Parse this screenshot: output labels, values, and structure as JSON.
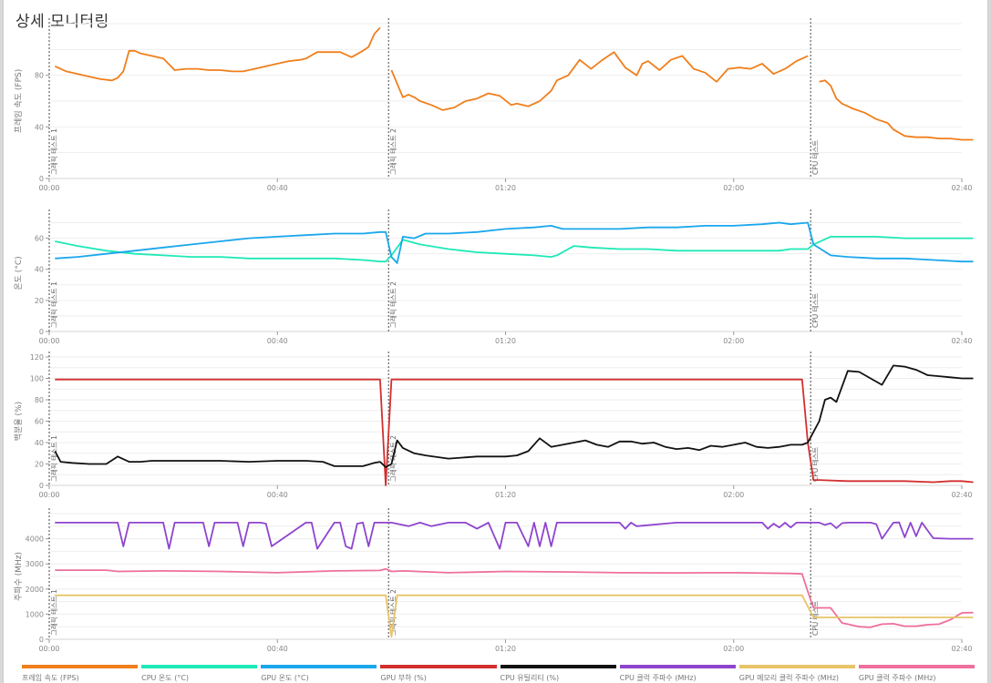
{
  "page": {
    "title": "상세 모니터링"
  },
  "x_axis": {
    "ticks": [
      "00:00",
      "00:40",
      "01:20",
      "02:00",
      "02:40"
    ],
    "tick_minutes": [
      0,
      40,
      80,
      120,
      160
    ],
    "range_minutes": [
      0,
      160
    ]
  },
  "markers": [
    {
      "label": "그래픽 테스트 1",
      "x_min": 0
    },
    {
      "label": "그래픽 테스트 2",
      "x_min": 59.5
    },
    {
      "label": "CPU 테스트",
      "x_min": 133.5
    }
  ],
  "legend": [
    {
      "label": "프레임 속도 (FPS)",
      "color": "#f07f1c"
    },
    {
      "label": "CPU 온도 (°C)",
      "color": "#1de9b6"
    },
    {
      "label": "GPU 온도 (°C)",
      "color": "#1aa7ec"
    },
    {
      "label": "GPU 부하 (%)",
      "color": "#d32f2f"
    },
    {
      "label": "CPU 유틸리티 (%)",
      "color": "#111111"
    },
    {
      "label": "CPU 클럭 주파수 (MHz)",
      "color": "#8e44ce"
    },
    {
      "label": "GPU 메모리 클럭 주파수 (MHz)",
      "color": "#e8c468"
    },
    {
      "label": "GPU 클럭 주파수 (MHz)",
      "color": "#ee6f9c"
    }
  ],
  "chart_data": [
    {
      "type": "line",
      "title": "",
      "xlabel": "",
      "ylabel": "프레임 속도 (FPS)",
      "ylim": [
        0,
        120
      ],
      "yticks": [
        0,
        40,
        80
      ],
      "grid": true,
      "x": [
        0,
        2,
        4,
        6,
        8,
        10,
        12,
        14,
        16,
        18,
        20,
        22,
        24,
        26,
        28,
        30,
        32,
        34,
        36,
        38,
        40,
        42,
        44,
        46,
        48,
        50,
        52,
        54,
        56,
        58
      ],
      "series": [
        {
          "name": "프레임 속도 (FPS)",
          "color": "#f07f1c",
          "segments": [
            {
              "x": [
                1,
                3,
                5,
                7,
                9,
                11,
                12,
                13,
                14,
                15,
                16,
                18,
                20,
                22,
                24,
                26,
                28,
                30,
                32,
                34,
                36,
                38,
                40,
                42,
                44,
                45,
                47,
                49,
                51,
                53,
                55,
                56,
                57,
                58
              ],
              "y": [
                87,
                83,
                81,
                79,
                77,
                76,
                78,
                83,
                99,
                99,
                97,
                95,
                93,
                84,
                85,
                85,
                84,
                84,
                83,
                83,
                85,
                87,
                89,
                91,
                92,
                93,
                98,
                98,
                98,
                94,
                99,
                102,
                112,
                117
              ]
            },
            {
              "x": [
                60,
                62,
                63,
                64,
                65,
                67,
                69,
                71,
                73,
                75,
                77,
                79,
                81,
                82,
                84,
                86,
                88,
                89,
                91,
                93,
                95,
                97,
                99,
                101,
                103,
                104,
                105,
                107,
                109,
                111,
                113,
                115,
                117,
                119,
                121,
                123,
                125,
                127,
                129,
                131,
                132,
                133
              ],
              "y": [
                84,
                63,
                65,
                63,
                60,
                57,
                53,
                55,
                60,
                62,
                66,
                64,
                57,
                58,
                56,
                60,
                68,
                76,
                80,
                92,
                85,
                92,
                98,
                86,
                80,
                89,
                91,
                84,
                92,
                95,
                85,
                82,
                75,
                85,
                86,
                85,
                89,
                81,
                85,
                91,
                93,
                95
              ]
            },
            {
              "x": [
                135,
                136,
                137,
                138,
                139,
                141,
                143,
                145,
                147,
                148,
                150,
                152,
                154,
                156,
                158,
                160,
                162
              ],
              "y": [
                75,
                76,
                72,
                62,
                58,
                54,
                51,
                46,
                43,
                38,
                33,
                32,
                32,
                31,
                31,
                30,
                30
              ]
            }
          ]
        }
      ]
    },
    {
      "type": "line",
      "title": "",
      "xlabel": "",
      "ylabel": "온도 (°C)",
      "ylim": [
        0,
        75
      ],
      "yticks": [
        0,
        20,
        40,
        60
      ],
      "grid": true,
      "series": [
        {
          "name": "CPU 온도 (°C)",
          "color": "#1de9b6",
          "x": [
            1,
            5,
            10,
            15,
            20,
            25,
            30,
            35,
            40,
            45,
            50,
            55,
            58,
            59,
            60,
            62,
            65,
            70,
            75,
            80,
            85,
            88,
            89,
            92,
            95,
            100,
            105,
            110,
            115,
            120,
            125,
            128,
            130,
            133,
            134,
            137,
            140,
            145,
            150,
            155,
            160,
            162
          ],
          "y": [
            58,
            55,
            52,
            50,
            49,
            48,
            48,
            47,
            47,
            47,
            47,
            46,
            45,
            45,
            49,
            59,
            56,
            53,
            51,
            50,
            49,
            48,
            49,
            55,
            54,
            53,
            53,
            52,
            52,
            52,
            52,
            52,
            53,
            53,
            56,
            61,
            61,
            61,
            60,
            60,
            60,
            60
          ]
        },
        {
          "name": "GPU 온도 (°C)",
          "color": "#1aa7ec",
          "x": [
            1,
            5,
            10,
            15,
            20,
            25,
            30,
            35,
            40,
            45,
            50,
            55,
            58,
            59,
            60,
            61,
            62,
            64,
            66,
            70,
            75,
            80,
            85,
            88,
            90,
            95,
            100,
            105,
            110,
            115,
            120,
            125,
            128,
            130,
            133,
            134,
            137,
            140,
            145,
            150,
            155,
            160,
            162
          ],
          "y": [
            47,
            48,
            50,
            52,
            54,
            56,
            58,
            60,
            61,
            62,
            63,
            63,
            64,
            64,
            48,
            44,
            61,
            60,
            63,
            63,
            64,
            66,
            67,
            68,
            66,
            66,
            66,
            67,
            67,
            68,
            68,
            69,
            70,
            69,
            70,
            56,
            49,
            48,
            47,
            47,
            46,
            45,
            45
          ]
        }
      ]
    },
    {
      "type": "line",
      "title": "",
      "xlabel": "",
      "ylabel": "백분율 (%)",
      "ylim": [
        0,
        120
      ],
      "yticks": [
        0,
        20,
        40,
        60,
        80,
        100,
        120
      ],
      "grid": true,
      "series": [
        {
          "name": "GPU 부하 (%)",
          "color": "#d32f2f",
          "x": [
            1,
            20,
            40,
            50,
            58,
            59,
            60,
            61,
            80,
            100,
            120,
            132,
            133,
            134,
            135,
            140,
            150,
            155,
            158,
            160,
            162
          ],
          "y": [
            99,
            99,
            99,
            99,
            99,
            0,
            99,
            99,
            99,
            99,
            99,
            99,
            40,
            5,
            5,
            4,
            4,
            3,
            4,
            4,
            3
          ]
        },
        {
          "name": "CPU 유틸리티 (%)",
          "color": "#111111",
          "x": [
            1,
            2,
            4,
            7,
            10,
            12,
            14,
            16,
            18,
            20,
            25,
            30,
            35,
            40,
            45,
            48,
            50,
            55,
            57,
            58,
            59,
            60,
            61,
            62,
            64,
            66,
            70,
            75,
            80,
            82,
            84,
            86,
            88,
            90,
            92,
            94,
            96,
            98,
            100,
            102,
            104,
            106,
            108,
            110,
            112,
            114,
            116,
            118,
            120,
            122,
            124,
            126,
            128,
            130,
            132,
            133,
            134,
            135,
            136,
            137,
            138,
            140,
            142,
            144,
            146,
            148,
            150,
            152,
            154,
            156,
            158,
            160,
            162
          ],
          "y": [
            32,
            22,
            21,
            20,
            20,
            27,
            22,
            22,
            23,
            23,
            23,
            23,
            22,
            23,
            23,
            22,
            18,
            18,
            21,
            22,
            17,
            20,
            42,
            35,
            30,
            28,
            25,
            27,
            27,
            28,
            32,
            44,
            36,
            38,
            40,
            42,
            38,
            36,
            41,
            41,
            39,
            40,
            36,
            34,
            35,
            33,
            37,
            36,
            38,
            40,
            36,
            35,
            36,
            38,
            38,
            40,
            50,
            60,
            80,
            82,
            78,
            107,
            106,
            100,
            94,
            112,
            111,
            108,
            103,
            102,
            101,
            100,
            100
          ]
        }
      ]
    },
    {
      "type": "line",
      "title": "",
      "xlabel": "",
      "ylabel": "주파수 (MHz)",
      "ylim": [
        0,
        5000
      ],
      "yticks": [
        0,
        1000,
        2000,
        3000,
        4000
      ],
      "grid": true,
      "series": [
        {
          "name": "CPU 클럭 주파수 (MHz)",
          "color": "#8e44ce",
          "x": [
            1,
            12,
            13,
            14,
            20,
            21,
            22,
            27,
            28,
            29,
            33,
            34,
            35,
            37,
            38,
            39,
            45,
            46,
            47,
            50,
            51,
            52,
            53,
            54,
            55,
            56,
            57,
            58,
            60,
            63,
            65,
            67,
            70,
            73,
            75,
            77,
            79,
            80,
            82,
            84,
            85,
            86,
            87,
            88,
            89,
            90,
            100,
            101,
            102,
            103,
            110,
            115,
            125,
            126,
            127,
            128,
            129,
            130,
            131,
            133,
            135,
            136,
            137,
            138,
            139,
            140,
            144,
            145,
            146,
            148,
            149,
            150,
            151,
            152,
            153,
            155,
            158,
            160,
            162
          ],
          "y": [
            4640,
            4640,
            3700,
            4640,
            4640,
            3600,
            4640,
            4640,
            3700,
            4640,
            4640,
            3700,
            4640,
            4640,
            4600,
            3700,
            4640,
            4640,
            3600,
            4640,
            4640,
            3700,
            3600,
            4600,
            4640,
            3700,
            4640,
            4640,
            4640,
            4500,
            4640,
            4500,
            4640,
            4640,
            4400,
            4640,
            3600,
            4640,
            4640,
            3700,
            4640,
            3700,
            4640,
            3700,
            4640,
            4640,
            4640,
            4400,
            4640,
            4500,
            4640,
            4640,
            4640,
            4400,
            4600,
            4450,
            4640,
            4450,
            4640,
            4640,
            4640,
            4550,
            4620,
            4420,
            4620,
            4640,
            4640,
            4580,
            4000,
            4640,
            4650,
            4060,
            4640,
            4100,
            4640,
            4020,
            4000,
            4000,
            4000
          ]
        },
        {
          "name": "GPU 클럭 주파수 (MHz)",
          "color": "#ee6f9c",
          "x": [
            1,
            10,
            12,
            20,
            30,
            40,
            50,
            58,
            59,
            60,
            62,
            70,
            80,
            90,
            100,
            110,
            120,
            130,
            132,
            133,
            134,
            136,
            137,
            139,
            140,
            142,
            144,
            146,
            148,
            150,
            152,
            154,
            156,
            158,
            160,
            162
          ],
          "y": [
            2750,
            2750,
            2700,
            2720,
            2700,
            2650,
            2720,
            2740,
            2800,
            2700,
            2720,
            2650,
            2700,
            2680,
            2650,
            2640,
            2650,
            2620,
            2600,
            1900,
            1250,
            1250,
            1250,
            650,
            600,
            500,
            480,
            600,
            620,
            520,
            520,
            580,
            600,
            780,
            1050,
            1060
          ]
        },
        {
          "name": "GPU 메모리 클럭 주파수 (MHz)",
          "color": "#e8c468",
          "x": [
            1,
            20,
            40,
            58,
            59,
            60,
            61,
            62,
            80,
            100,
            120,
            132,
            133,
            134,
            135,
            140,
            150,
            160,
            162
          ],
          "y": [
            1750,
            1750,
            1750,
            1750,
            1750,
            100,
            1750,
            1750,
            1750,
            1750,
            1750,
            1750,
            1300,
            870,
            870,
            870,
            870,
            870,
            870
          ]
        }
      ]
    }
  ]
}
